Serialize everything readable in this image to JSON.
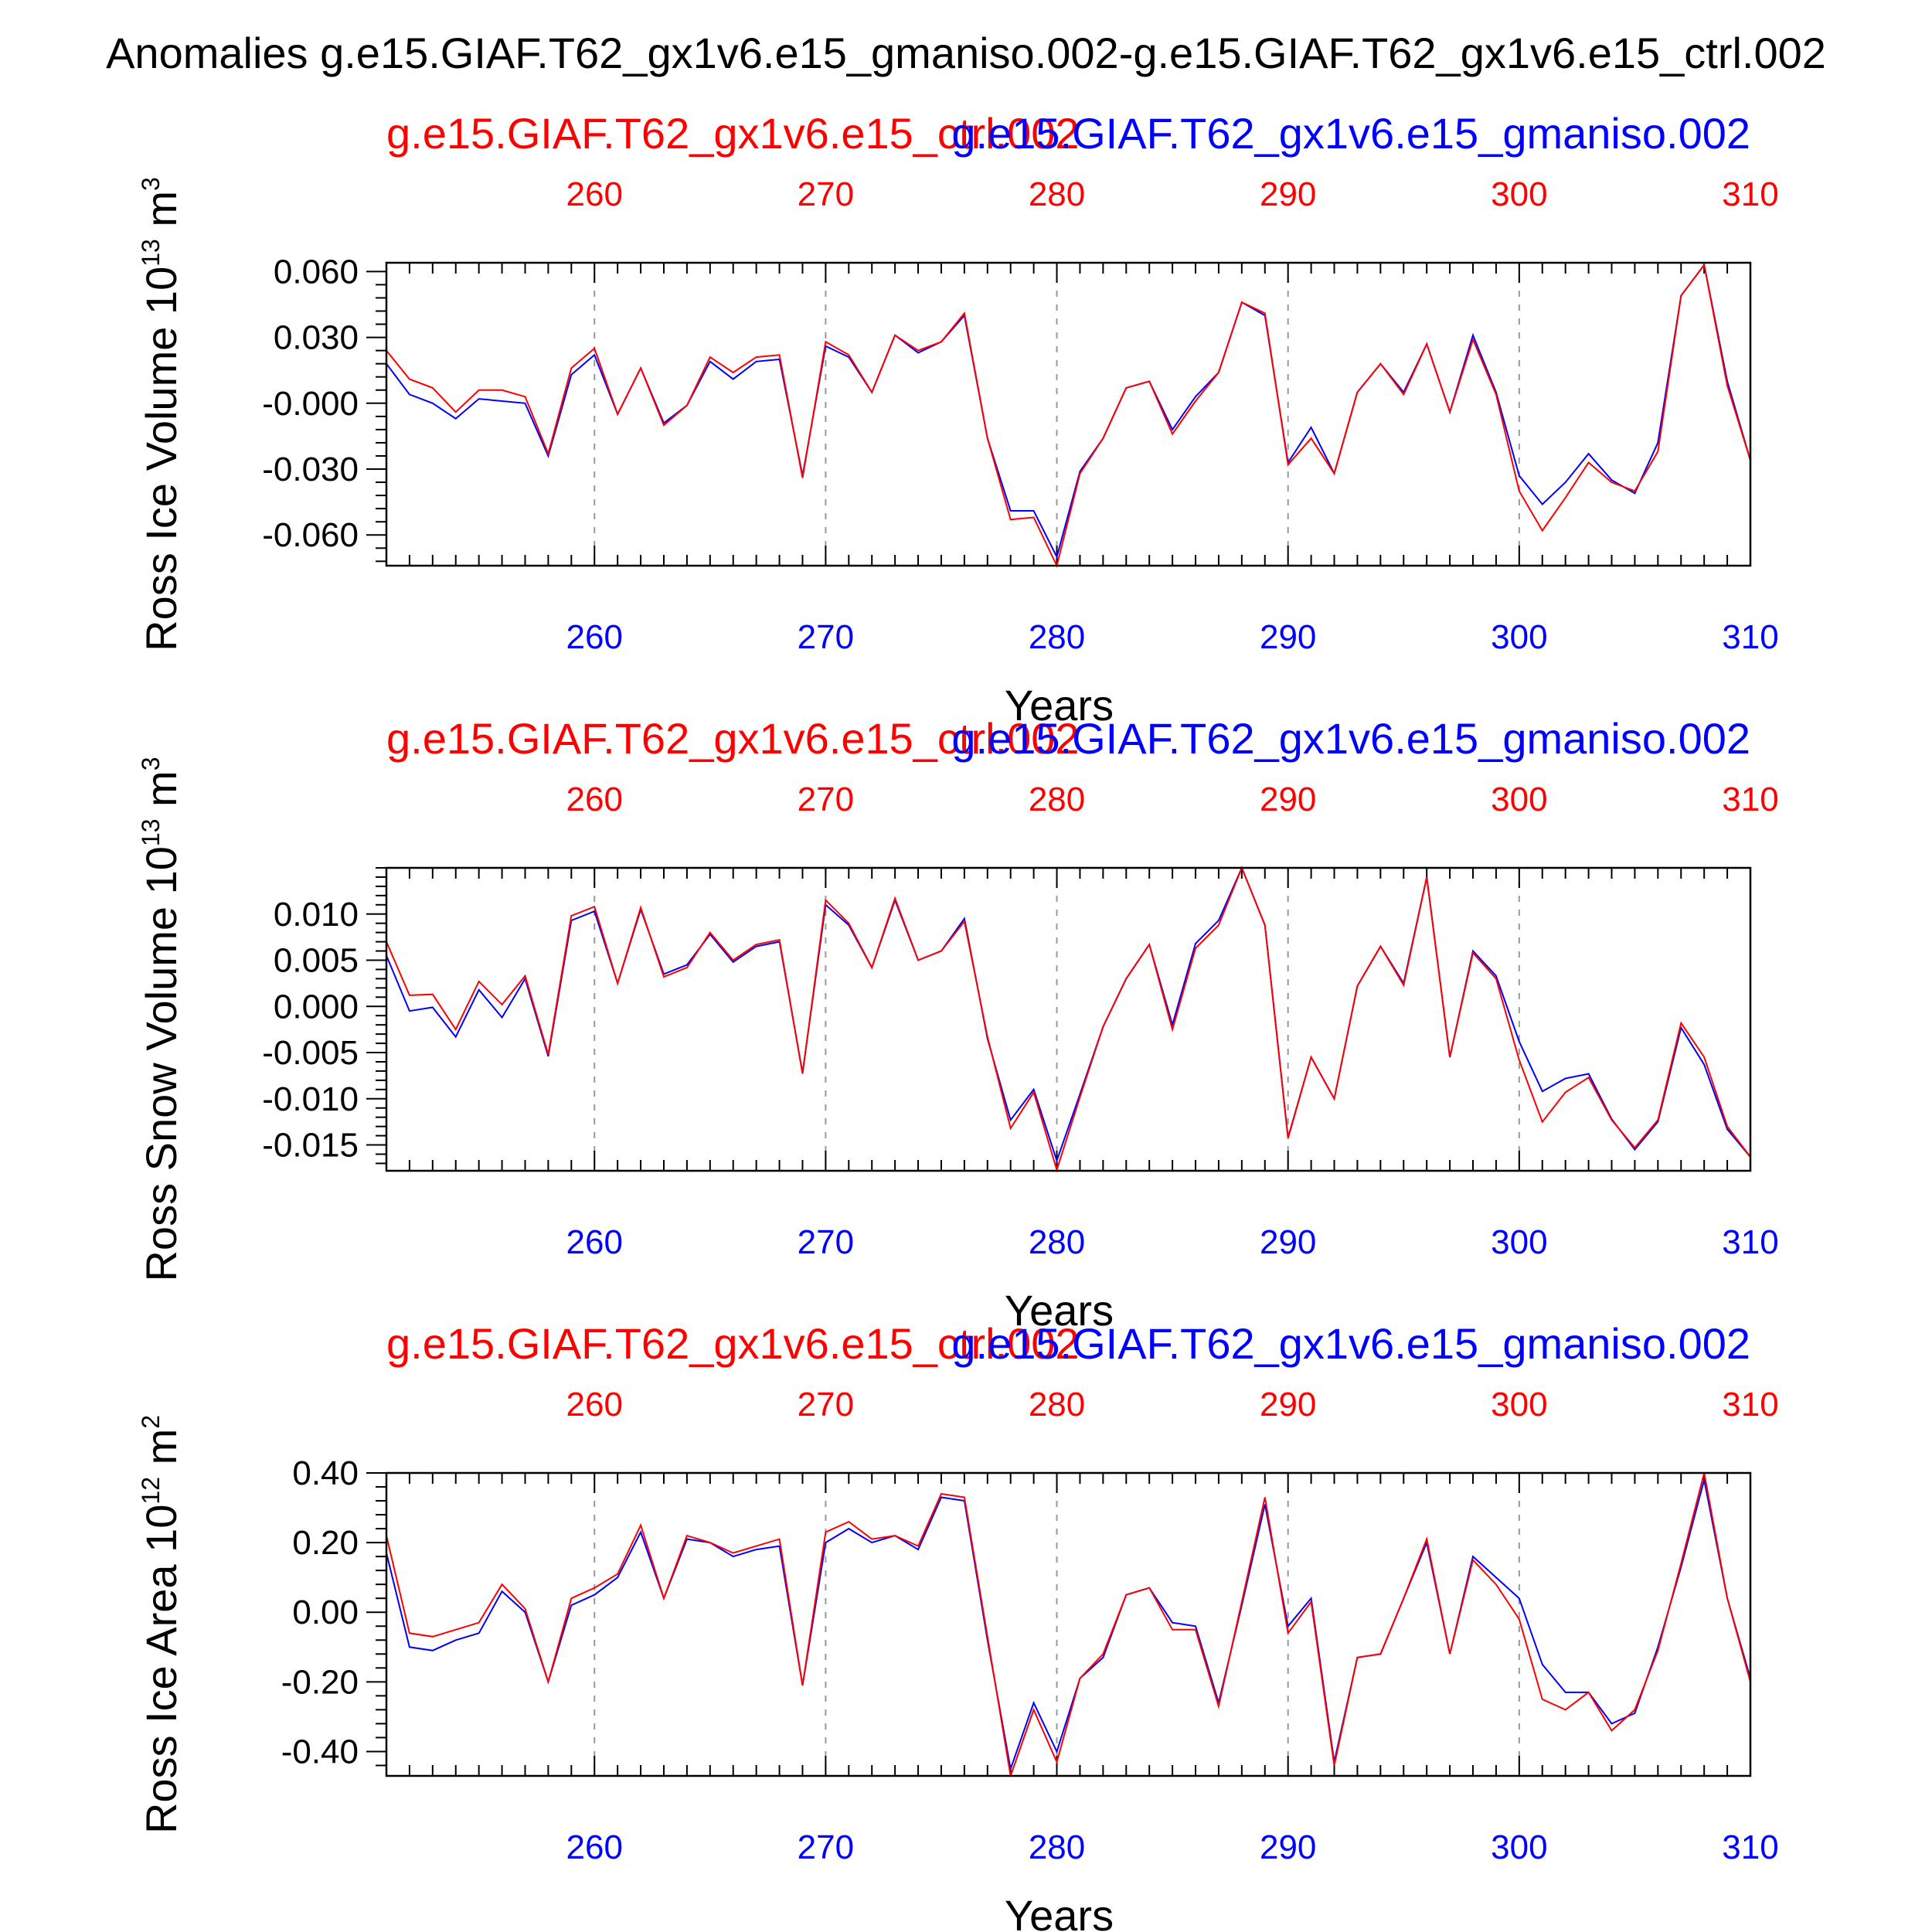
{
  "title": "Anomalies g.e15.GIAF.T62_gx1v6.e15_gmaniso.002-g.e15.GIAF.T62_gx1v6.e15_ctrl.002",
  "colors": {
    "ctrl": "#ff0000",
    "gmaniso": "#0000ff",
    "axis": "#000000"
  },
  "chart_data": [
    {
      "type": "line",
      "ylabel_main": "Ross Ice Volume 10",
      "ylabel_exp": "13",
      "ylabel_unit": "m",
      "ylabel_unit_exp": "3",
      "xlabel": "Years",
      "top_series_label": "g.e15.GIAF.T62_gx1v6.e15_ctrl.002",
      "bottom_series_label": "g.e15.GIAF.T62_gx1v6.e15_gmaniso.002",
      "xlim": [
        251,
        310
      ],
      "ylim": [
        -0.074,
        0.064
      ],
      "xticks": [
        260,
        270,
        280,
        290,
        300,
        310
      ],
      "xtick_labels": [
        "260",
        "270",
        "280",
        "290",
        "300",
        "310"
      ],
      "yticks": [
        0.06,
        0.03,
        0.0,
        -0.03,
        -0.06
      ],
      "ytick_labels": [
        "0.060",
        "0.030",
        "-0.000",
        "-0.030",
        "-0.060"
      ],
      "x": [
        251,
        252,
        253,
        254,
        255,
        256,
        257,
        258,
        259,
        260,
        261,
        262,
        263,
        264,
        265,
        266,
        267,
        268,
        269,
        270,
        271,
        272,
        273,
        274,
        275,
        276,
        277,
        278,
        279,
        280,
        281,
        282,
        283,
        284,
        285,
        286,
        287,
        288,
        289,
        290,
        291,
        292,
        293,
        294,
        295,
        296,
        297,
        298,
        299,
        300,
        301,
        302,
        303,
        304,
        305,
        306,
        307,
        308,
        309,
        310
      ],
      "series": [
        {
          "name": "g.e15.GIAF.T62_gx1v6.e15_gmaniso.002",
          "color": "#0000ff",
          "values": [
            0.018,
            0.004,
            0.0,
            -0.007,
            0.002,
            0.001,
            0.0,
            -0.024,
            0.013,
            0.022,
            -0.005,
            0.016,
            -0.009,
            -0.001,
            0.019,
            0.011,
            0.019,
            0.02,
            -0.033,
            0.026,
            0.021,
            0.005,
            0.031,
            0.023,
            0.028,
            0.04,
            -0.016,
            -0.049,
            -0.049,
            -0.07,
            -0.031,
            -0.016,
            0.007,
            0.01,
            -0.012,
            0.003,
            0.014,
            0.046,
            0.04,
            -0.027,
            -0.011,
            -0.032,
            0.005,
            0.018,
            0.005,
            0.027,
            -0.004,
            0.031,
            0.005,
            -0.033,
            -0.046,
            -0.036,
            -0.023,
            -0.035,
            -0.041,
            -0.018,
            0.049,
            0.063,
            0.01,
            -0.026
          ]
        },
        {
          "name": "g.e15.GIAF.T62_gx1v6.e15_ctrl.002",
          "color": "#ff0000",
          "values": [
            0.024,
            0.011,
            0.007,
            -0.004,
            0.006,
            0.006,
            0.003,
            -0.023,
            0.016,
            0.025,
            -0.005,
            0.016,
            -0.01,
            -0.001,
            0.021,
            0.014,
            0.021,
            0.022,
            -0.034,
            0.028,
            0.022,
            0.005,
            0.031,
            0.024,
            0.028,
            0.041,
            -0.016,
            -0.053,
            -0.052,
            -0.074,
            -0.032,
            -0.016,
            0.007,
            0.01,
            -0.014,
            0.001,
            0.014,
            0.046,
            0.041,
            -0.028,
            -0.016,
            -0.032,
            0.005,
            0.018,
            0.004,
            0.027,
            -0.004,
            0.029,
            0.004,
            -0.04,
            -0.058,
            -0.043,
            -0.027,
            -0.036,
            -0.04,
            -0.022,
            0.049,
            0.063,
            0.008,
            -0.026
          ]
        }
      ]
    },
    {
      "type": "line",
      "ylabel_main": "Ross Snow Volume 10",
      "ylabel_exp": "13",
      "ylabel_unit": "m",
      "ylabel_unit_exp": "3",
      "xlabel": "Years",
      "top_series_label": "g.e15.GIAF.T62_gx1v6.e15_ctrl.002",
      "bottom_series_label": "g.e15.GIAF.T62_gx1v6.e15_gmaniso.002",
      "xlim": [
        251,
        310
      ],
      "ylim": [
        -0.0178,
        0.015
      ],
      "xticks": [
        260,
        270,
        280,
        290,
        300,
        310
      ],
      "xtick_labels": [
        "260",
        "270",
        "280",
        "290",
        "300",
        "310"
      ],
      "yticks": [
        0.01,
        0.005,
        0.0,
        -0.005,
        -0.01,
        -0.015
      ],
      "ytick_labels": [
        "0.010",
        "0.005",
        "0.000",
        "-0.005",
        "-0.010",
        "-0.015"
      ],
      "x": [
        251,
        252,
        253,
        254,
        255,
        256,
        257,
        258,
        259,
        260,
        261,
        262,
        263,
        264,
        265,
        266,
        267,
        268,
        269,
        270,
        271,
        272,
        273,
        274,
        275,
        276,
        277,
        278,
        279,
        280,
        281,
        282,
        283,
        284,
        285,
        286,
        287,
        288,
        289,
        290,
        291,
        292,
        293,
        294,
        295,
        296,
        297,
        298,
        299,
        300,
        301,
        302,
        303,
        304,
        305,
        306,
        307,
        308,
        309,
        310
      ],
      "series": [
        {
          "name": "g.e15.GIAF.T62_gx1v6.e15_gmaniso.002",
          "color": "#0000ff",
          "values": [
            0.0055,
            -0.0005,
            -0.0001,
            -0.0033,
            0.0018,
            -0.0012,
            0.003,
            -0.0054,
            0.0093,
            0.0103,
            0.0025,
            0.0105,
            0.0035,
            0.0045,
            0.0078,
            0.0048,
            0.0065,
            0.007,
            -0.0072,
            0.011,
            0.0088,
            0.0042,
            0.0115,
            0.005,
            0.006,
            0.0095,
            -0.0035,
            -0.0123,
            -0.009,
            -0.0167,
            -0.0095,
            -0.0022,
            0.003,
            0.0067,
            -0.002,
            0.0068,
            0.0093,
            0.015,
            0.0088,
            -0.0142,
            -0.0055,
            -0.01,
            0.0022,
            0.0065,
            0.0025,
            0.014,
            -0.0055,
            0.006,
            0.0033,
            -0.0038,
            -0.0092,
            -0.0078,
            -0.0073,
            -0.0122,
            -0.0155,
            -0.0125,
            -0.0023,
            -0.0063,
            -0.0133,
            -0.0163
          ]
        },
        {
          "name": "g.e15.GIAF.T62_gx1v6.e15_ctrl.002",
          "color": "#ff0000",
          "values": [
            0.007,
            0.0012,
            0.0013,
            -0.0025,
            0.0027,
            0.0002,
            0.0033,
            -0.0052,
            0.0098,
            0.0108,
            0.0025,
            0.0107,
            0.0032,
            0.0042,
            0.008,
            0.005,
            0.0067,
            0.0072,
            -0.0073,
            0.0115,
            0.009,
            0.0042,
            0.0117,
            0.005,
            0.006,
            0.0092,
            -0.0033,
            -0.0132,
            -0.0093,
            -0.0177,
            -0.0098,
            -0.0022,
            0.003,
            0.0067,
            -0.0025,
            0.0063,
            0.0088,
            0.015,
            0.0088,
            -0.0143,
            -0.0055,
            -0.01,
            0.0022,
            0.0065,
            0.0023,
            0.014,
            -0.0055,
            0.0058,
            0.003,
            -0.0058,
            -0.0125,
            -0.0093,
            -0.0077,
            -0.0123,
            -0.0153,
            -0.0123,
            -0.0018,
            -0.0055,
            -0.013,
            -0.0163
          ]
        }
      ]
    },
    {
      "type": "line",
      "ylabel_main": "Ross Ice Area 10",
      "ylabel_exp": "12",
      "ylabel_unit": "m",
      "ylabel_unit_exp": "2",
      "xlabel": "Years",
      "top_series_label": "g.e15.GIAF.T62_gx1v6.e15_ctrl.002",
      "bottom_series_label": "g.e15.GIAF.T62_gx1v6.e15_gmaniso.002",
      "xlim": [
        251,
        310
      ],
      "ylim": [
        -0.47,
        0.4
      ],
      "xticks": [
        260,
        270,
        280,
        290,
        300,
        310
      ],
      "xtick_labels": [
        "260",
        "270",
        "280",
        "290",
        "300",
        "310"
      ],
      "yticks": [
        0.4,
        0.2,
        0.0,
        -0.2,
        -0.4
      ],
      "ytick_labels": [
        "0.40",
        "0.20",
        "0.00",
        "-0.20",
        "-0.40"
      ],
      "x": [
        251,
        252,
        253,
        254,
        255,
        256,
        257,
        258,
        259,
        260,
        261,
        262,
        263,
        264,
        265,
        266,
        267,
        268,
        269,
        270,
        271,
        272,
        273,
        274,
        275,
        276,
        277,
        278,
        279,
        280,
        281,
        282,
        283,
        284,
        285,
        286,
        287,
        288,
        289,
        290,
        291,
        292,
        293,
        294,
        295,
        296,
        297,
        298,
        299,
        300,
        301,
        302,
        303,
        304,
        305,
        306,
        307,
        308,
        309,
        310
      ],
      "series": [
        {
          "name": "g.e15.GIAF.T62_gx1v6.e15_gmaniso.002",
          "color": "#0000ff",
          "values": [
            0.17,
            -0.1,
            -0.11,
            -0.08,
            -0.06,
            0.06,
            0.0,
            -0.2,
            0.02,
            0.05,
            0.1,
            0.23,
            0.04,
            0.21,
            0.2,
            0.16,
            0.18,
            0.19,
            -0.21,
            0.2,
            0.24,
            0.2,
            0.22,
            0.18,
            0.33,
            0.32,
            -0.08,
            -0.45,
            -0.26,
            -0.4,
            -0.19,
            -0.13,
            0.05,
            0.07,
            -0.03,
            -0.04,
            -0.26,
            0.02,
            0.31,
            -0.04,
            0.04,
            -0.43,
            -0.13,
            -0.12,
            0.04,
            0.2,
            -0.12,
            0.16,
            0.1,
            0.04,
            -0.15,
            -0.23,
            -0.23,
            -0.32,
            -0.29,
            -0.1,
            0.13,
            0.38,
            0.04,
            -0.19
          ]
        },
        {
          "name": "g.e15.GIAF.T62_gx1v6.e15_ctrl.002",
          "color": "#ff0000",
          "values": [
            0.22,
            -0.06,
            -0.07,
            -0.05,
            -0.03,
            0.08,
            0.01,
            -0.2,
            0.04,
            0.07,
            0.11,
            0.25,
            0.04,
            0.22,
            0.2,
            0.17,
            0.19,
            0.21,
            -0.21,
            0.23,
            0.26,
            0.21,
            0.22,
            0.19,
            0.34,
            0.33,
            -0.07,
            -0.47,
            -0.28,
            -0.43,
            -0.19,
            -0.12,
            0.05,
            0.07,
            -0.05,
            -0.05,
            -0.27,
            0.03,
            0.33,
            -0.06,
            0.03,
            -0.44,
            -0.13,
            -0.12,
            0.04,
            0.21,
            -0.12,
            0.15,
            0.08,
            -0.02,
            -0.25,
            -0.28,
            -0.23,
            -0.34,
            -0.28,
            -0.11,
            0.14,
            0.4,
            0.04,
            -0.2
          ]
        }
      ]
    }
  ]
}
